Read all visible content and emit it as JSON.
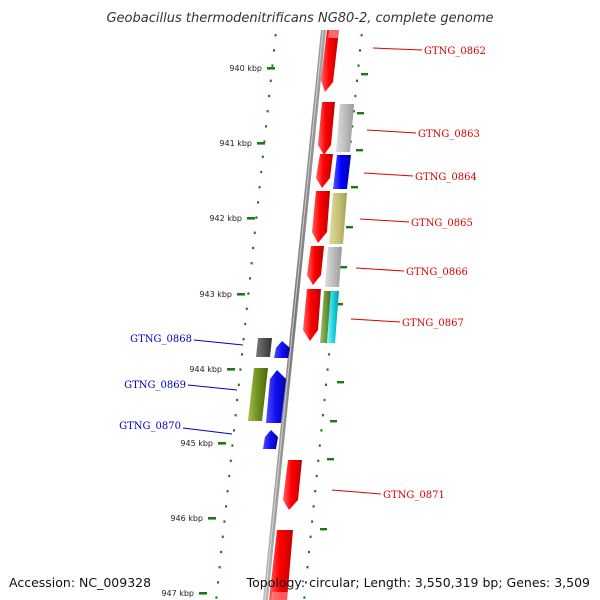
{
  "title": "Geobacillus thermodenitrificans NG80-2, complete genome",
  "accession": "Accession: NC_009328",
  "topology": "Topology: circular; Length: 3,550,319 bp; Genes: 3,509",
  "colors": {
    "forward_label": "#dd0000",
    "reverse_label": "#0000cc",
    "ruler_tick": "#1a7a1a",
    "backbone": "#8a8a8a"
  },
  "ruler": {
    "ticks": [
      {
        "label": "940 kbp"
      },
      {
        "label": "941 kbp"
      },
      {
        "label": "942 kbp"
      },
      {
        "label": "943 kbp"
      },
      {
        "label": "944 kbp"
      },
      {
        "label": "945 kbp"
      },
      {
        "label": "946 kbp"
      },
      {
        "label": "947 kbp"
      }
    ]
  },
  "genes": [
    {
      "label": "GTNG_0862",
      "strand": "forward"
    },
    {
      "label": "GTNG_0863",
      "strand": "forward"
    },
    {
      "label": "GTNG_0864",
      "strand": "forward"
    },
    {
      "label": "GTNG_0865",
      "strand": "forward"
    },
    {
      "label": "GTNG_0866",
      "strand": "forward"
    },
    {
      "label": "GTNG_0867",
      "strand": "forward"
    },
    {
      "label": "GTNG_0868",
      "strand": "reverse"
    },
    {
      "label": "GTNG_0869",
      "strand": "reverse"
    },
    {
      "label": "GTNG_0870",
      "strand": "reverse"
    },
    {
      "label": "GTNG_0871",
      "strand": "forward"
    }
  ]
}
